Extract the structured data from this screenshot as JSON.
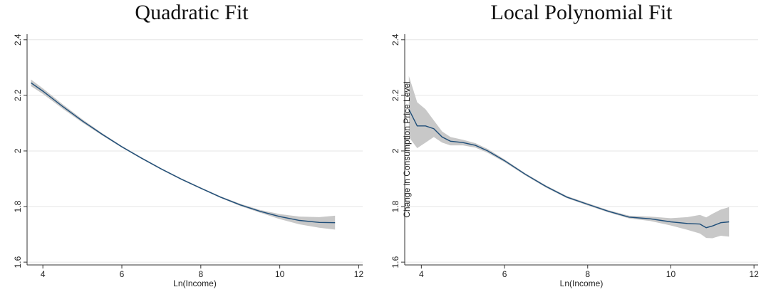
{
  "chart_data": [
    {
      "type": "line",
      "title": "Quadratic Fit",
      "xlabel": "Ln(Income)",
      "ylabel": "",
      "xlim": [
        3.6,
        12.1
      ],
      "ylim": [
        1.59,
        2.42
      ],
      "xticks": [
        4,
        6,
        8,
        10,
        12
      ],
      "yticks": [
        1.6,
        1.8,
        2,
        2.2,
        2.4
      ],
      "ytick_labels": [
        "1.6",
        "1.8",
        "2",
        "2.2",
        "2.4"
      ],
      "grid": true,
      "band_color": "#c8c8c8",
      "line_color": "#1f4e79",
      "series": [
        {
          "x": [
            3.7,
            4.0,
            4.5,
            5.0,
            5.5,
            6.0,
            6.5,
            7.0,
            7.5,
            8.0,
            8.5,
            9.0,
            9.5,
            10.0,
            10.5,
            11.0,
            11.4
          ],
          "y": [
            2.245,
            2.215,
            2.16,
            2.108,
            2.06,
            2.015,
            1.974,
            1.935,
            1.899,
            1.866,
            1.834,
            1.806,
            1.783,
            1.764,
            1.75,
            1.743,
            1.742
          ],
          "lower": [
            2.233,
            2.205,
            2.152,
            2.102,
            2.056,
            2.012,
            1.971,
            1.932,
            1.896,
            1.863,
            1.831,
            1.802,
            1.778,
            1.755,
            1.736,
            1.724,
            1.717
          ],
          "upper": [
            2.257,
            2.225,
            2.168,
            2.114,
            2.064,
            2.018,
            1.977,
            1.938,
            1.902,
            1.869,
            1.837,
            1.81,
            1.788,
            1.773,
            1.764,
            1.762,
            1.767
          ]
        }
      ]
    },
    {
      "type": "line",
      "title": "Local Polynomial Fit",
      "xlabel": "Ln(Income)",
      "ylabel": "Change in Consumption Price Level",
      "xlim": [
        3.6,
        12.1
      ],
      "ylim": [
        1.59,
        2.42
      ],
      "xticks": [
        4,
        6,
        8,
        10,
        12
      ],
      "yticks": [
        1.6,
        1.8,
        2,
        2.2,
        2.4
      ],
      "ytick_labels": [
        "1.6",
        "1.8",
        "2",
        "2.2",
        "2.4"
      ],
      "grid": true,
      "band_color": "#c8c8c8",
      "line_color": "#1f4e79",
      "series": [
        {
          "x": [
            3.7,
            3.9,
            4.1,
            4.3,
            4.5,
            4.7,
            5.0,
            5.3,
            5.6,
            6.0,
            6.5,
            7.0,
            7.5,
            8.0,
            8.5,
            9.0,
            9.5,
            10.0,
            10.4,
            10.7,
            10.85,
            11.0,
            11.2,
            11.4
          ],
          "y": [
            2.15,
            2.09,
            2.09,
            2.08,
            2.05,
            2.035,
            2.03,
            2.02,
            2.0,
            1.965,
            1.916,
            1.872,
            1.834,
            1.808,
            1.783,
            1.762,
            1.756,
            1.745,
            1.739,
            1.737,
            1.724,
            1.73,
            1.742,
            1.745
          ],
          "lower": [
            2.05,
            2.01,
            2.03,
            2.05,
            2.03,
            2.02,
            2.02,
            2.012,
            1.993,
            1.96,
            1.912,
            1.868,
            1.83,
            1.804,
            1.779,
            1.757,
            1.748,
            1.732,
            1.716,
            1.703,
            1.687,
            1.686,
            1.695,
            1.692
          ],
          "upper": [
            2.27,
            2.175,
            2.15,
            2.11,
            2.07,
            2.05,
            2.04,
            2.028,
            2.007,
            1.97,
            1.92,
            1.876,
            1.838,
            1.812,
            1.787,
            1.767,
            1.764,
            1.758,
            1.762,
            1.77,
            1.761,
            1.774,
            1.789,
            1.798
          ]
        }
      ]
    }
  ]
}
